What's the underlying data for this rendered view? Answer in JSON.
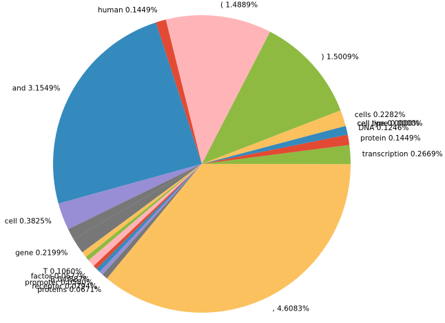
{
  "chart_data": {
    "type": "pie",
    "title": "",
    "startangle_deg": 104,
    "direction": "counterclockwise",
    "slices": [
      {
        "label": "human",
        "value": 0.1449,
        "label_text": "human 0.1449%",
        "color": "#e24a33"
      },
      {
        "label": "and",
        "value": 3.1549,
        "label_text": "and 3.1549%",
        "color": "#348abd"
      },
      {
        "label": "cell",
        "value": 0.3825,
        "label_text": "cell 0.3825%",
        "color": "#988ed5"
      },
      {
        "label": "",
        "value": 0.157,
        "label_text": "",
        "color": "#777777"
      },
      {
        "label": "gene",
        "value": 0.2199,
        "label_text": "gene 0.2199%",
        "color": "#777777"
      },
      {
        "label": "",
        "value": 0.08,
        "label_text": "",
        "color": "#fbc15e"
      },
      {
        "label": "",
        "value": 0.06,
        "label_text": "",
        "color": "#8eba42"
      },
      {
        "label": "T",
        "value": 0.106,
        "label_text": "T 0.1060%",
        "color": "#ffb5b8"
      },
      {
        "label": "factor",
        "value": 0.0577,
        "label_text": "factor 0.0577%",
        "color": "#e24a33"
      },
      {
        "label": "B",
        "value": 0.0587,
        "label_text": "B 0.0587%",
        "color": "#348abd"
      },
      {
        "label": "promoter",
        "value": 0.058,
        "label_text": "promoter 0.0580%",
        "color": "#988ed5"
      },
      {
        "label": "receptor",
        "value": 0.0794,
        "label_text": "receptor 0.0794%",
        "color": "#777777"
      },
      {
        "label": "proteins",
        "value": 0.0671,
        "label_text": "proteins 0.0671%",
        "color": "#fbc15e"
      },
      {
        "label": ",",
        "value": 4.6083,
        "label_text": ", 4.6083%",
        "color": "#fbc15e"
      },
      {
        "label": "transcription",
        "value": 0.2669,
        "label_text": "transcription 0.2669%",
        "color": "#8eba42"
      },
      {
        "label": "protein",
        "value": 0.1449,
        "label_text": "protein 0.1449%",
        "color": "#e24a33"
      },
      {
        "label": "DNA",
        "value": 0.1246,
        "label_text": "DNA 0.1246%",
        "color": "#348abd"
      },
      {
        "label": "cell line",
        "value": 0.0,
        "label_text": "cell line 0.0000%",
        "color": "#988ed5"
      },
      {
        "label": "cell type",
        "value": 0.0,
        "label_text": "cell type 0.0000%",
        "color": "#777777"
      },
      {
        "label": "cells",
        "value": 0.2282,
        "label_text": "cells 0.2282%",
        "color": "#fbc15e"
      },
      {
        "label": ")",
        "value": 1.5009,
        "label_text": ") 1.5009%",
        "color": "#8eba42"
      },
      {
        "label": "(",
        "value": 1.4889,
        "label_text": "( 1.4889%",
        "color": "#ffb5b8"
      }
    ]
  }
}
